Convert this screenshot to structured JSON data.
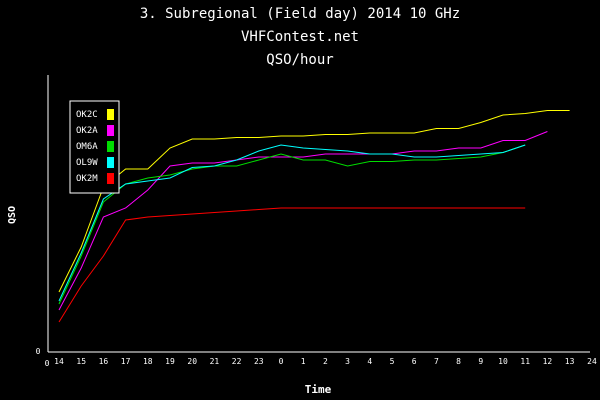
{
  "colors": {
    "background": "#000000",
    "axis": "#ffffff",
    "text": "#ffffff"
  },
  "chart_data": {
    "type": "line",
    "title_lines": [
      "3. Subregional (Field day) 2014 10 GHz",
      "VHFContest.net",
      "QSO/hour"
    ],
    "xlabel": "Time",
    "ylabel": "QSO",
    "y_tick_label": "0",
    "x_origin_label": "0",
    "x_end_label": "24",
    "categories": [
      "14",
      "15",
      "16",
      "17",
      "18",
      "19",
      "20",
      "21",
      "22",
      "23",
      "0",
      "1",
      "2",
      "3",
      "4",
      "5",
      "6",
      "7",
      "8",
      "9",
      "10",
      "11",
      "12",
      "13"
    ],
    "ylim": [
      0,
      100
    ],
    "grid": false,
    "legend_position": "top-left",
    "series": [
      {
        "name": "OK2C",
        "color": "#ffff00",
        "values": [
          20,
          35,
          55,
          61,
          61,
          68,
          71,
          71,
          71.5,
          71.5,
          72,
          72,
          72.5,
          72.5,
          73,
          73,
          73,
          74.5,
          74.5,
          76.5,
          79,
          79.5,
          80.5,
          80.5
        ]
      },
      {
        "name": "OK2A",
        "color": "#ff00ff",
        "values": [
          14,
          28,
          45,
          48,
          54,
          62,
          63,
          63,
          64,
          65,
          65,
          65,
          66,
          66,
          66,
          66,
          67,
          67,
          68,
          68,
          70.5,
          70.5,
          73.5,
          null
        ]
      },
      {
        "name": "OM6A",
        "color": "#00dd00",
        "values": [
          16,
          32,
          50,
          56,
          58,
          59,
          61,
          62,
          62,
          64,
          66,
          64,
          64,
          62,
          63.5,
          63.5,
          64,
          64,
          64.5,
          65,
          66.5,
          69,
          null,
          null
        ]
      },
      {
        "name": "OL9W",
        "color": "#00ffff",
        "values": [
          17,
          33,
          51,
          56,
          57,
          58,
          61.5,
          62,
          64,
          67,
          69,
          68,
          67.5,
          67,
          66,
          66,
          65,
          65,
          65.5,
          66,
          66.5,
          69,
          null,
          null
        ]
      },
      {
        "name": "OK2M",
        "color": "#ff0000",
        "values": [
          10,
          22,
          32,
          44,
          45,
          45.5,
          46,
          46.5,
          47,
          47.5,
          48,
          48,
          48,
          48,
          48,
          48,
          48,
          48,
          48,
          48,
          48,
          48,
          null,
          null
        ]
      }
    ]
  }
}
